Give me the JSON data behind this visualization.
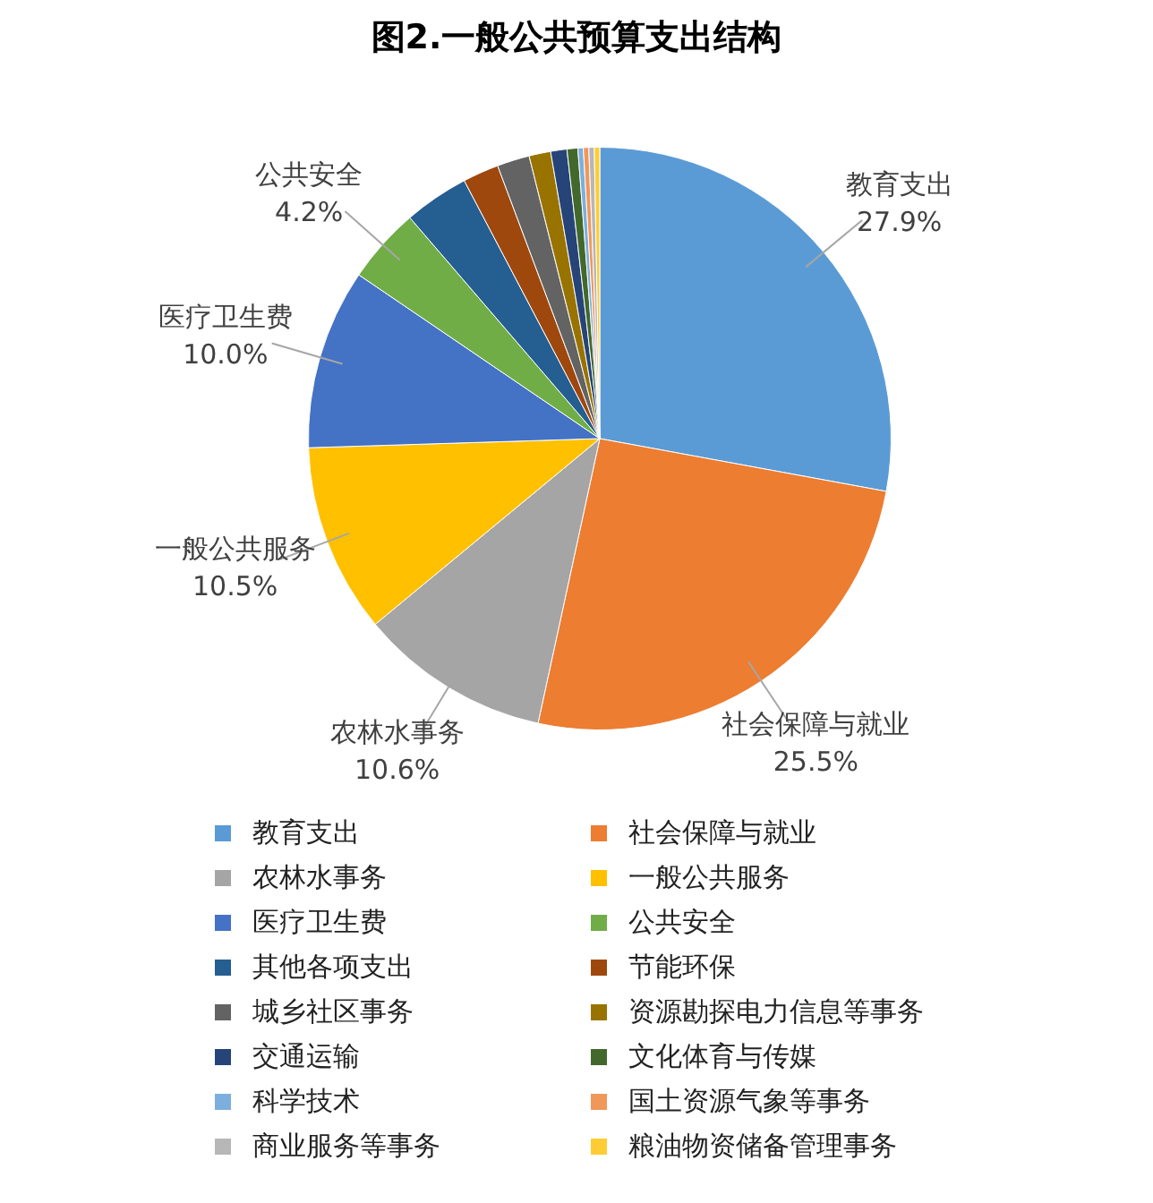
{
  "chart_data": {
    "type": "pie",
    "title": "图2.一般公共预算支出结构",
    "categories": [
      "教育支出",
      "社会保障与就业",
      "农林水事务",
      "一般公共服务",
      "医疗卫生费",
      "公共安全",
      "其他各项支出",
      "节能环保",
      "城乡社区事务",
      "资源勘探电力信息等事务",
      "交通运输",
      "文化体育与传媒",
      "科学技术",
      "国土资源气象等事务",
      "商业服务等事务",
      "粮油物资储备管理事务"
    ],
    "values": [
      27.9,
      25.5,
      10.6,
      10.5,
      10.0,
      4.2,
      3.6,
      2.0,
      1.8,
      1.2,
      0.9,
      0.6,
      0.3,
      0.3,
      0.3,
      0.3
    ],
    "value_labels": [
      "27.9%",
      "25.5%",
      "10.6%",
      "10.5%",
      "10.0%",
      "4.2%",
      null,
      null,
      null,
      null,
      null,
      null,
      null,
      null,
      null,
      null
    ],
    "colors": [
      "#5b9bd5",
      "#ed7d31",
      "#a5a5a5",
      "#ffc000",
      "#4472c4",
      "#70ad47",
      "#255e91",
      "#9e480e",
      "#636363",
      "#997300",
      "#264478",
      "#43682b",
      "#7cafdd",
      "#f1975a",
      "#b7b7b7",
      "#ffcd33"
    ],
    "legend": "bottom"
  }
}
